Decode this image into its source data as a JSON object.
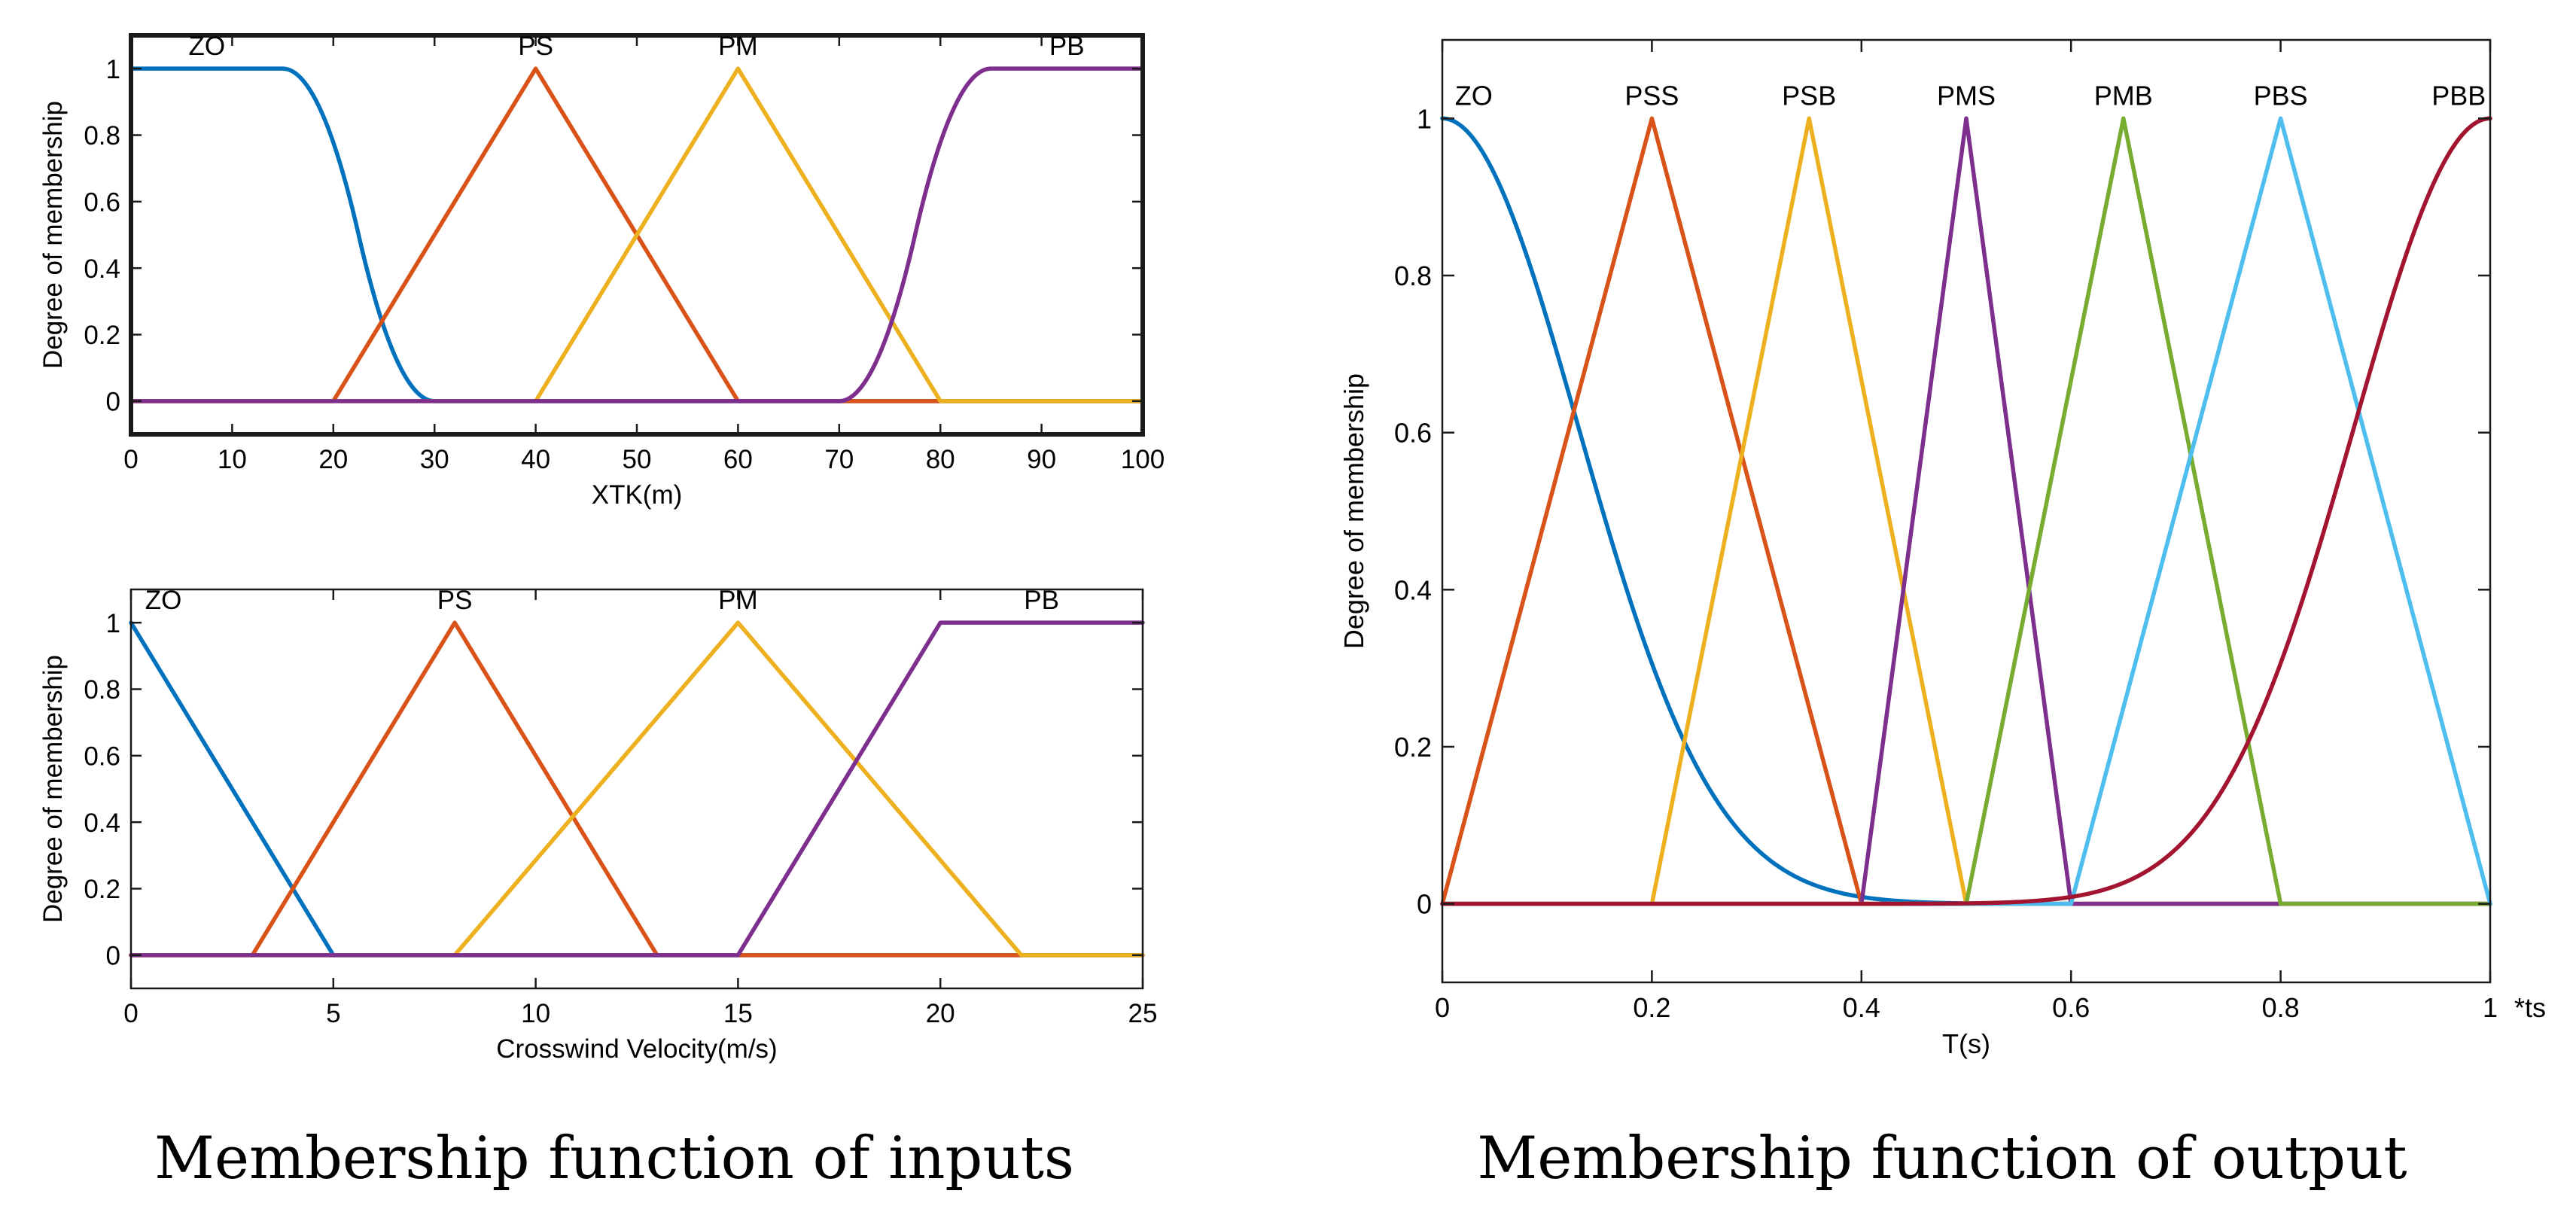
{
  "captions": {
    "inputs": "Membership function of inputs",
    "output": "Membership function of output"
  },
  "colors": {
    "blue": "#0072BD",
    "orange": "#D95319",
    "yellow": "#EDB120",
    "purple": "#7E2F8E",
    "green": "#77AC30",
    "cyan": "#4DBEEE",
    "darkred": "#A2142F"
  },
  "chart_data": [
    {
      "id": "xtk",
      "type": "line",
      "title": "",
      "xlabel": "XTK(m)",
      "ylabel": "Degree of membership",
      "xlim": [
        0,
        100
      ],
      "ylim": [
        -0.1,
        1.1
      ],
      "xticks": [
        0,
        10,
        20,
        30,
        40,
        50,
        60,
        70,
        80,
        90,
        100
      ],
      "yticks": [
        0,
        0.2,
        0.4,
        0.6,
        0.8,
        1
      ],
      "grid": false,
      "series": [
        {
          "name": "ZO",
          "shape": "zmf",
          "params": [
            15,
            30
          ],
          "color": "#0072BD",
          "label_x": 7.5
        },
        {
          "name": "PS",
          "shape": "trimf",
          "params": [
            20,
            40,
            60
          ],
          "color": "#D95319",
          "label_x": 40
        },
        {
          "name": "PM",
          "shape": "trimf",
          "params": [
            40,
            60,
            80
          ],
          "color": "#EDB120",
          "label_x": 60
        },
        {
          "name": "PB",
          "shape": "smf",
          "params": [
            70,
            85
          ],
          "color": "#7E2F8E",
          "label_x": 92.5
        }
      ]
    },
    {
      "id": "crosswind",
      "type": "line",
      "title": "",
      "xlabel": "Crosswind Velocity(m/s)",
      "ylabel": "Degree of membership",
      "xlim": [
        0,
        25
      ],
      "ylim": [
        -0.1,
        1.1
      ],
      "xticks": [
        0,
        5,
        10,
        15,
        20,
        25
      ],
      "yticks": [
        0,
        0.2,
        0.4,
        0.6,
        0.8,
        1
      ],
      "grid": false,
      "series": [
        {
          "name": "ZO",
          "shape": "points",
          "points": [
            [
              0,
              1
            ],
            [
              5,
              0
            ],
            [
              25,
              0
            ]
          ],
          "color": "#0072BD",
          "label_x": 0.8
        },
        {
          "name": "PS",
          "shape": "trimf",
          "params": [
            3,
            8,
            13
          ],
          "color": "#D95319",
          "label_x": 8
        },
        {
          "name": "PM",
          "shape": "trimf",
          "params": [
            8,
            15,
            22
          ],
          "color": "#EDB120",
          "label_x": 15
        },
        {
          "name": "PB",
          "shape": "points",
          "points": [
            [
              0,
              0
            ],
            [
              15,
              0
            ],
            [
              20,
              1
            ],
            [
              25,
              1
            ]
          ],
          "color": "#7E2F8E",
          "label_x": 22.5
        }
      ]
    },
    {
      "id": "output",
      "type": "line",
      "title": "",
      "xlabel": "T(s)",
      "ylabel": "Degree of membership",
      "x_unit_annotation": "*ts",
      "xlim": [
        0,
        1
      ],
      "ylim": [
        -0.1,
        1.1
      ],
      "xticks": [
        0,
        0.2,
        0.4,
        0.6,
        0.8,
        1
      ],
      "yticks": [
        0,
        0.2,
        0.4,
        0.6,
        0.8,
        1
      ],
      "grid": false,
      "series": [
        {
          "name": "ZO",
          "shape": "gauss",
          "params": [
            0.13,
            0
          ],
          "color": "#0072BD",
          "label_x": 0.03
        },
        {
          "name": "PSS",
          "shape": "trimf",
          "params": [
            0,
            0.2,
            0.4
          ],
          "color": "#D95319",
          "label_x": 0.2
        },
        {
          "name": "PSB",
          "shape": "trimf",
          "params": [
            0.2,
            0.35,
            0.5
          ],
          "color": "#EDB120",
          "label_x": 0.35
        },
        {
          "name": "PMS",
          "shape": "trimf",
          "params": [
            0.4,
            0.5,
            0.6
          ],
          "color": "#7E2F8E",
          "label_x": 0.5
        },
        {
          "name": "PMB",
          "shape": "trimf",
          "params": [
            0.5,
            0.65,
            0.8
          ],
          "color": "#77AC30",
          "label_x": 0.65
        },
        {
          "name": "PBS",
          "shape": "trimf",
          "params": [
            0.6,
            0.8,
            1.0
          ],
          "color": "#4DBEEE",
          "label_x": 0.8
        },
        {
          "name": "PBB",
          "shape": "gauss",
          "params": [
            0.13,
            1
          ],
          "color": "#A2142F",
          "label_x": 0.97
        }
      ]
    }
  ]
}
